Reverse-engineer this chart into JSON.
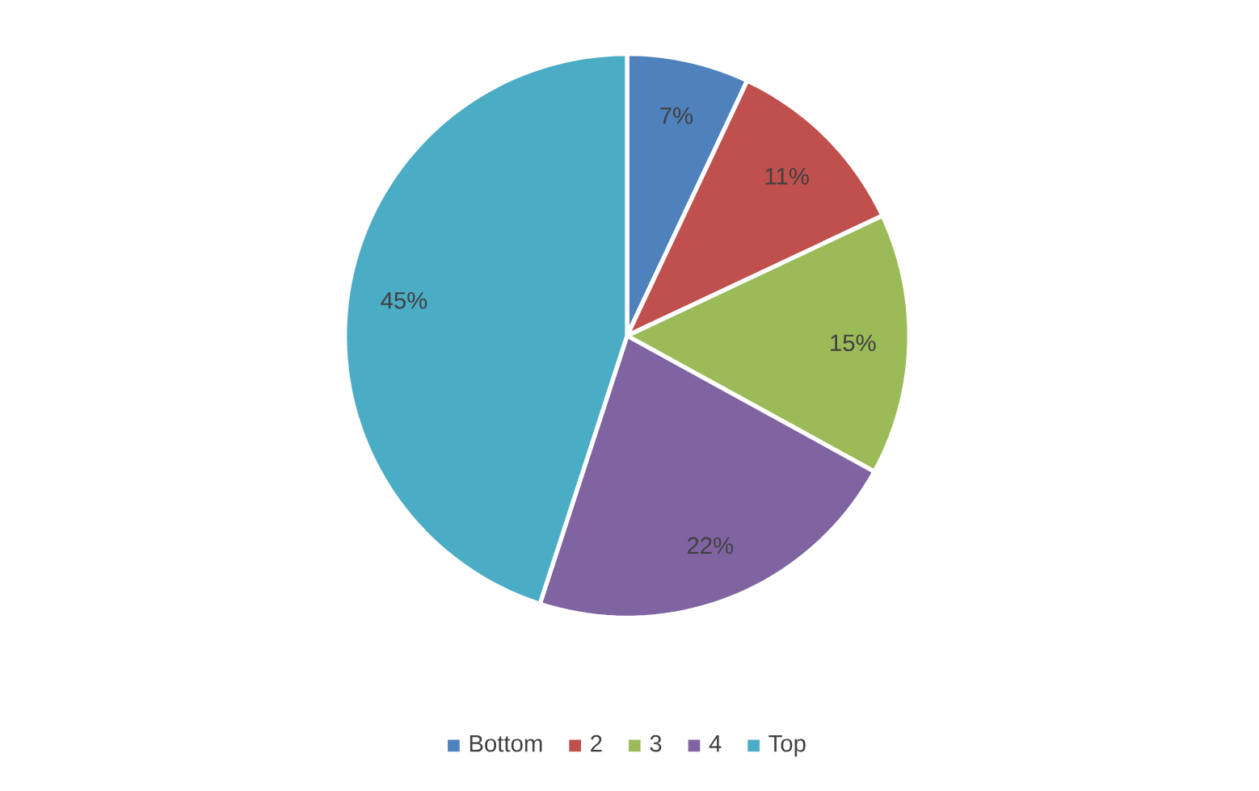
{
  "chart_data": {
    "type": "pie",
    "categories": [
      "Bottom",
      "2",
      "3",
      "4",
      "Top"
    ],
    "values": [
      7,
      11,
      15,
      22,
      45
    ],
    "value_labels": [
      "7%",
      "11%",
      "15%",
      "22%",
      "45%"
    ],
    "colors": [
      "#4f81bd",
      "#c0504d",
      "#9bbb59",
      "#8064a2",
      "#4bacc6"
    ],
    "legend": "bottom"
  }
}
